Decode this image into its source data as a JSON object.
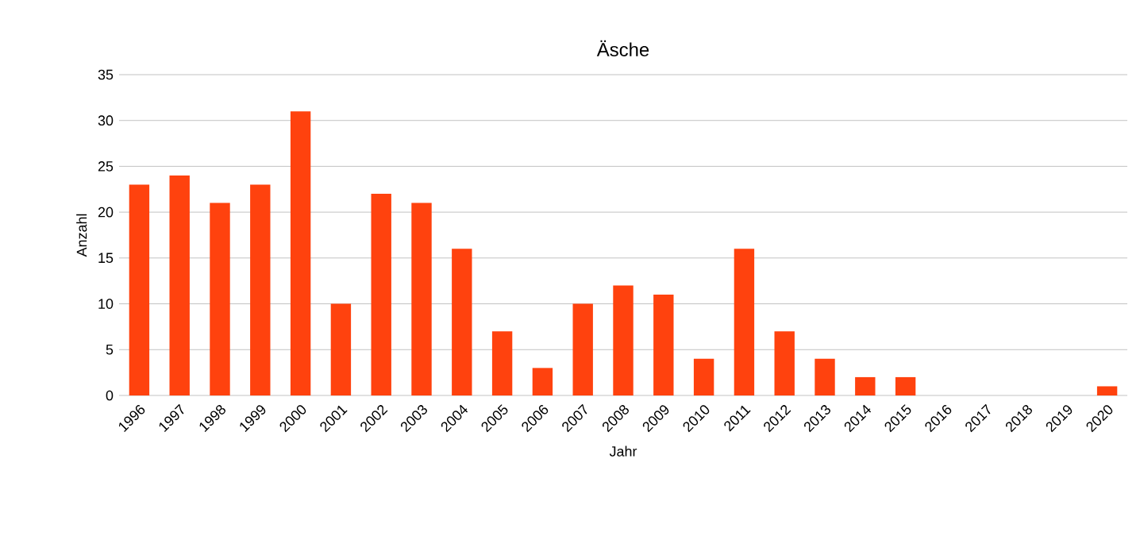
{
  "chart_data": {
    "type": "bar",
    "title": "Äsche",
    "xlabel": "Jahr",
    "ylabel": "Anzahl",
    "categories": [
      "1996",
      "1997",
      "1998",
      "1999",
      "2000",
      "2001",
      "2002",
      "2003",
      "2004",
      "2005",
      "2006",
      "2007",
      "2008",
      "2009",
      "2010",
      "2011",
      "2012",
      "2013",
      "2014",
      "2015",
      "2016",
      "2017",
      "2018",
      "2019",
      "2020"
    ],
    "values": [
      23,
      24,
      21,
      23,
      31,
      10,
      22,
      21,
      16,
      7,
      3,
      10,
      12,
      11,
      4,
      16,
      7,
      4,
      2,
      2,
      0,
      0,
      0,
      0,
      1
    ],
    "color": "#ff420e",
    "ylim": [
      0,
      35
    ],
    "yticks": [
      0,
      5,
      10,
      15,
      20,
      25,
      30,
      35
    ],
    "grid": "y"
  }
}
